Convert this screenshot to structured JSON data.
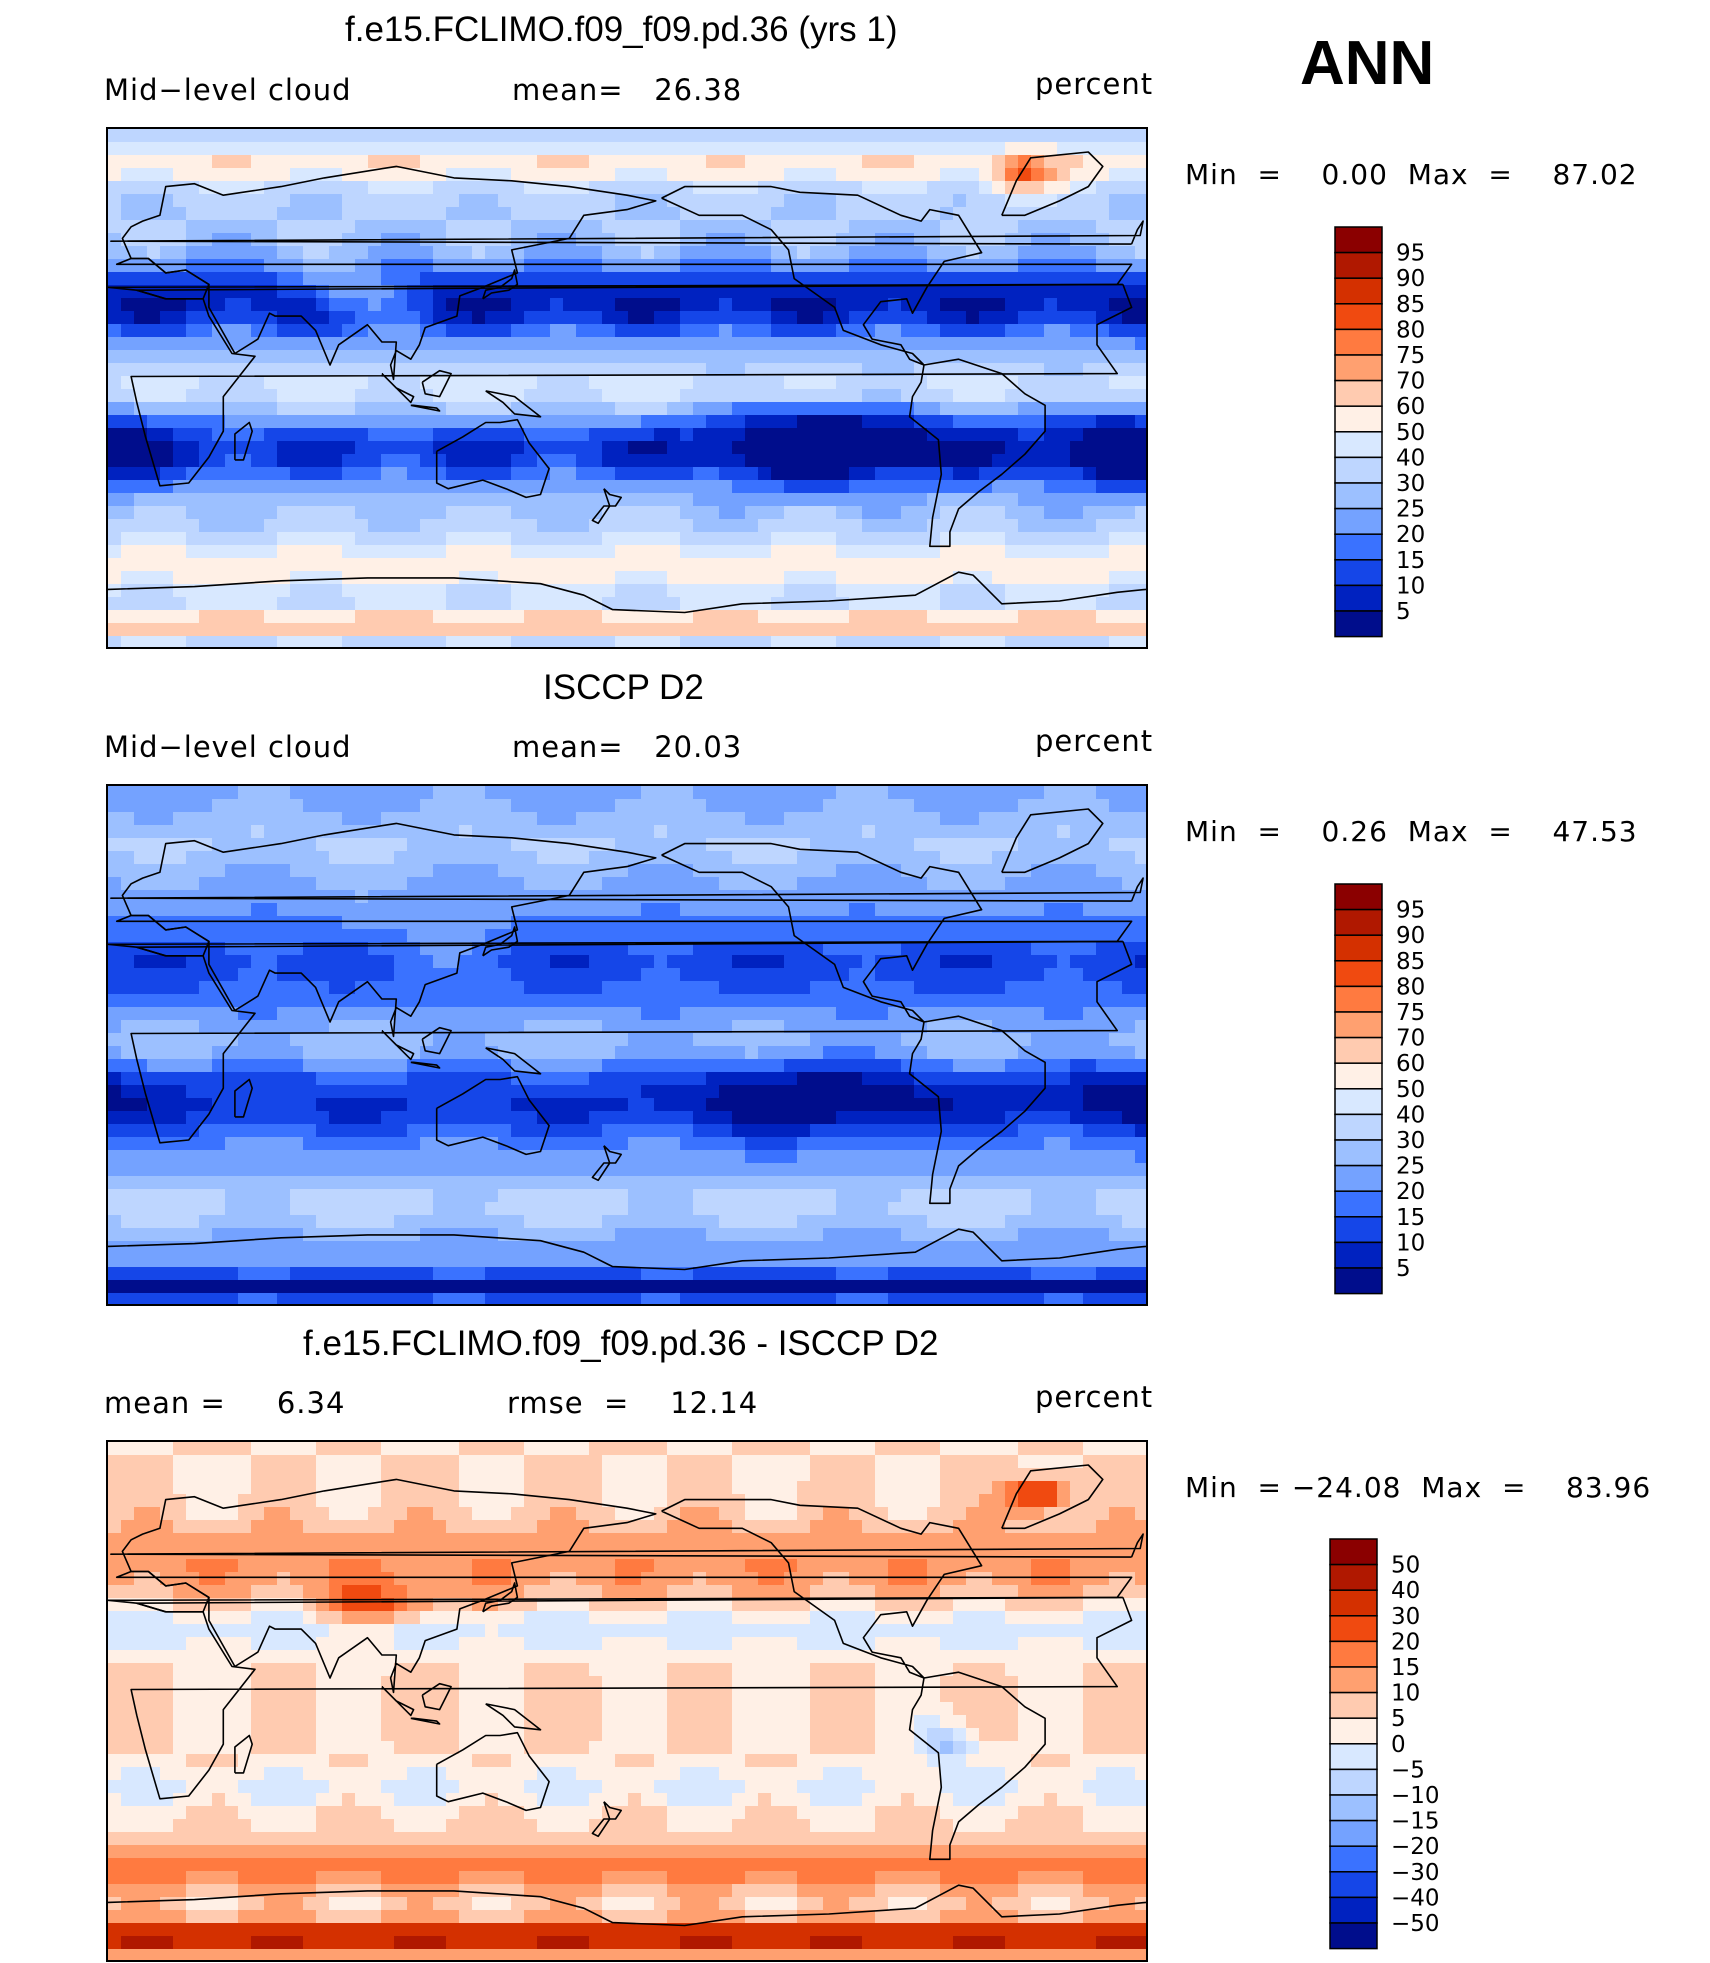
{
  "season": "ANN",
  "panels": [
    {
      "title": "f.e15.FCLIMO.f09_f09.pd.36 (yrs 1)",
      "left_label": "Mid−level cloud",
      "center_label": "mean=   26.38",
      "right_label": "percent",
      "minmax": "Min  =    0.00  Max  =    87.02",
      "colorbar": {
        "labels": [
          "95",
          "90",
          "85",
          "80",
          "75",
          "70",
          "60",
          "50",
          "40",
          "30",
          "25",
          "20",
          "15",
          "10",
          "5"
        ],
        "colors": [
          "#8b0000",
          "#b01800",
          "#d43000",
          "#f04a10",
          "#ff7a40",
          "#ffa070",
          "#ffcbb0",
          "#fff0e6",
          "#d8e8ff",
          "#bed6ff",
          "#9cc0ff",
          "#74a2ff",
          "#3a72ff",
          "#1546e8",
          "#0022c0",
          "#000d8c"
        ]
      },
      "field": "model"
    },
    {
      "title": "ISCCP D2",
      "left_label": "Mid−level cloud",
      "center_label": "mean=   20.03",
      "right_label": "percent",
      "minmax": "Min  =    0.26  Max  =    47.53",
      "colorbar": {
        "labels": [
          "95",
          "90",
          "85",
          "80",
          "75",
          "70",
          "60",
          "50",
          "40",
          "30",
          "25",
          "20",
          "15",
          "10",
          "5"
        ],
        "colors": [
          "#8b0000",
          "#b01800",
          "#d43000",
          "#f04a10",
          "#ff7a40",
          "#ffa070",
          "#ffcbb0",
          "#fff0e6",
          "#d8e8ff",
          "#bed6ff",
          "#9cc0ff",
          "#74a2ff",
          "#3a72ff",
          "#1546e8",
          "#0022c0",
          "#000d8c"
        ]
      },
      "field": "obs"
    },
    {
      "title": "f.e15.FCLIMO.f09_f09.pd.36 - ISCCP D2",
      "left_label": "mean =     6.34",
      "center_label": "rmse  =    12.14",
      "right_label": "percent",
      "minmax": "Min  = −24.08  Max  =    83.96",
      "colorbar": {
        "labels": [
          "50",
          "40",
          "30",
          "20",
          "15",
          "10",
          "5",
          "0",
          "−5",
          "−10",
          "−15",
          "−20",
          "−30",
          "−40",
          "−50"
        ],
        "colors": [
          "#8b0000",
          "#b01800",
          "#d43000",
          "#f04a10",
          "#ff7a40",
          "#ffa070",
          "#ffcbb0",
          "#fff0e6",
          "#d8e8ff",
          "#bed6ff",
          "#9cc0ff",
          "#74a2ff",
          "#3a72ff",
          "#1546e8",
          "#0022c0",
          "#000d8c"
        ]
      },
      "field": "diff"
    }
  ]
}
